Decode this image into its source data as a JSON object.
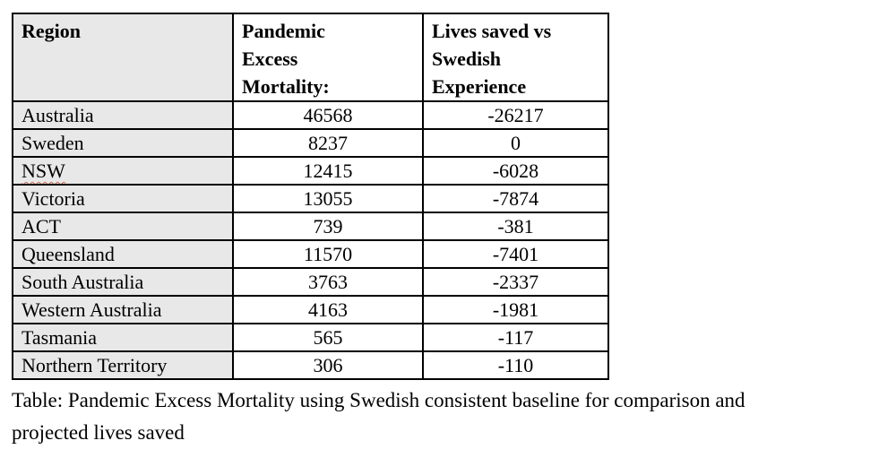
{
  "document": {
    "table": {
      "header": {
        "region": "Region",
        "mortality": "Pandemic\nExcess\nMortality:",
        "saved": "Lives saved vs\nSwedish\nExperience"
      },
      "rows": [
        {
          "region": "Australia",
          "mortality": "46568",
          "saved": "-26217"
        },
        {
          "region": "Sweden",
          "mortality": "8237",
          "saved": "0"
        },
        {
          "region": "NSW",
          "mortality": "12415",
          "saved": "-6028"
        },
        {
          "region": "Victoria",
          "mortality": "13055",
          "saved": "-7874"
        },
        {
          "region": "ACT",
          "mortality": "739",
          "saved": "-381"
        },
        {
          "region": "Queensland",
          "mortality": "11570",
          "saved": "-7401"
        },
        {
          "region": "South Australia",
          "mortality": "3763",
          "saved": "-2337"
        },
        {
          "region": "Western Australia",
          "mortality": "4163",
          "saved": "-1981"
        },
        {
          "region": "Tasmania",
          "mortality": "565",
          "saved": "-117"
        },
        {
          "region": "Northern Territory",
          "mortality": "306",
          "saved": "-110"
        }
      ]
    },
    "caption": "Table: Pandemic Excess Mortality using Swedish consistent baseline for comparison and\nprojected lives saved",
    "colors": {
      "region_column_background": "#e8e8e8",
      "table_border": "#000000",
      "spellcheck_squiggle": "#d06a55"
    }
  }
}
